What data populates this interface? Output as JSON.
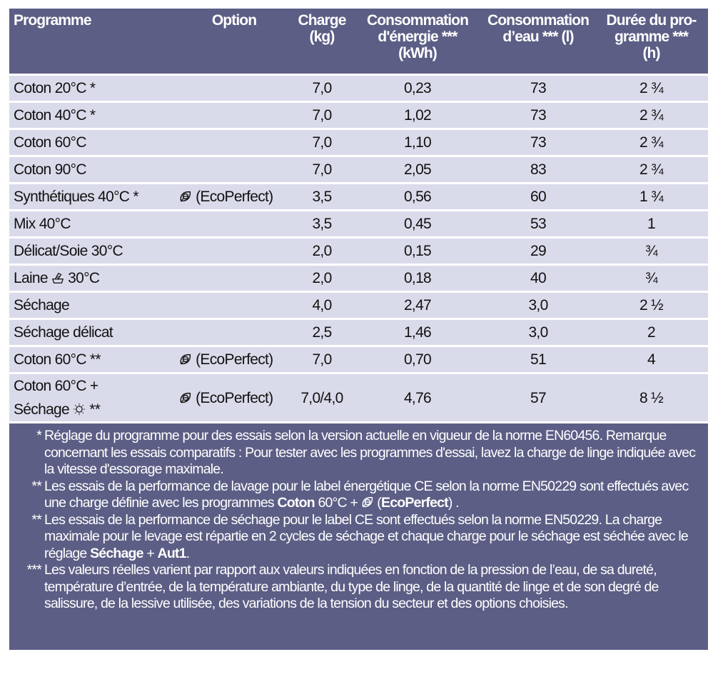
{
  "headers": [
    "Programme",
    "Option",
    "Charge (kg)",
    "Consommation d'énergie *** (kWh)",
    "Consommation d’eau *** (l)",
    "Durée du pro-gramme *** (h)"
  ],
  "rows": [
    {
      "prog": "Coton 20°C *",
      "opt": "",
      "charge": "7,0",
      "energy": "0,23",
      "water": "73",
      "dur": "2 ¾"
    },
    {
      "prog": "Coton 40°C *",
      "opt": "",
      "charge": "7,0",
      "energy": "1,02",
      "water": "73",
      "dur": "2 ¾"
    },
    {
      "prog": "Coton 60°C",
      "opt": "",
      "charge": "7,0",
      "energy": "1,10",
      "water": "73",
      "dur": "2 ¾"
    },
    {
      "prog": "Coton 90°C",
      "opt": "",
      "charge": "7,0",
      "energy": "2,05",
      "water": "83",
      "dur": "2 ¾"
    },
    {
      "prog": "Synthétiques 40°C *",
      "opt": "(EcoPerfect)",
      "charge": "3,5",
      "energy": "0,56",
      "water": "60",
      "dur": "1 ¾"
    },
    {
      "prog": "Mix 40°C",
      "opt": "",
      "charge": "3,5",
      "energy": "0,45",
      "water": "53",
      "dur": "1"
    },
    {
      "prog": "Délicat/Soie 30°C",
      "opt": "",
      "charge": "2,0",
      "energy": "0,15",
      "water": "29",
      "dur": "¾"
    },
    {
      "prog_a": "Laine",
      "prog_b": "30°C",
      "opt": "",
      "charge": "2,0",
      "energy": "0,18",
      "water": "40",
      "dur": "¾"
    },
    {
      "prog": "Séchage",
      "opt": "",
      "charge": "4,0",
      "energy": "2,47",
      "water": "3,0",
      "dur": "2 ½"
    },
    {
      "prog": "Séchage délicat",
      "opt": "",
      "charge": "2,5",
      "energy": "1,46",
      "water": "3,0",
      "dur": "2"
    },
    {
      "prog": "Coton 60°C **",
      "opt": "(EcoPerfect)",
      "charge": "7,0",
      "energy": "0,70",
      "water": "51",
      "dur": "4"
    },
    {
      "prog_a": "Coton 60°C +",
      "prog_b": "Séchage",
      "prog_c": "**",
      "opt": "(EcoPerfect)",
      "charge": "7,0/4,0",
      "energy": "4,76",
      "water": "57",
      "dur": "8 ½"
    }
  ],
  "icons": {
    "eco": "ecoperfect-leaf-icon",
    "wool": "hand-wash-icon",
    "dry": "sun-dry-icon"
  },
  "colors": {
    "header": "#5c5e85",
    "row": "#dadbea",
    "text_on_header": "#ffffff"
  },
  "footnotes": {
    "f1_mark": "*",
    "f1": "Réglage du programme pour des essais selon la version actuelle en vigueur de la norme EN60456. Remarque concernant les essais comparatifs : Pour tester avec les programmes d'essai, lavez la charge de linge indiquée avec la vitesse d'essorage maximale.",
    "f2_mark": "**",
    "f2_a": "Les essais de la performance de lavage pour le label énergétique CE selon la norme EN50229 sont effectués avec une charge définie avec les programmes",
    "f2_b": "Coton",
    "f2_c": "60°C +",
    "f2_d": "(",
    "f2_e": "EcoPerfect",
    "f2_f": ") .",
    "f3_mark": "**",
    "f3_a": "Les essais de la performance de séchage pour le label CE sont effectués selon la norme EN50229. La charge maximale pour le levage est répartie en 2 cycles de séchage et chaque charge pour le séchage est séchée avec le réglage",
    "f3_b": "Séchage",
    "f3_c": "+",
    "f3_d": "Aut1",
    "f4_mark": "***",
    "f4": "Les valeurs réelles varient par rapport aux valeurs indiquées en fonction de la pression de l’eau, de sa dureté, température d’entrée, de la température ambiante, du type de linge, de la quantité de linge et de son degré de salissure, de la lessive utilisée, des variations de la tension du secteur et des options choisies."
  }
}
